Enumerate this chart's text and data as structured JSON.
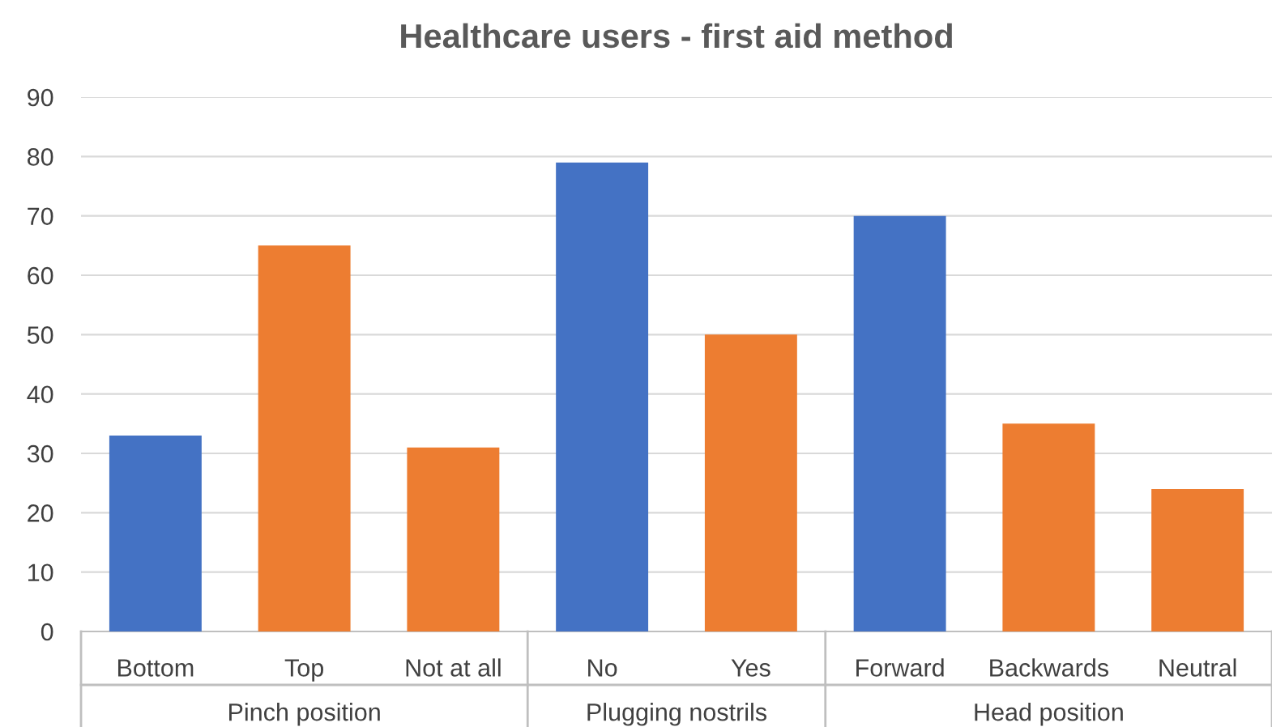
{
  "chart_data": {
    "type": "bar",
    "title": "Healthcare users - first aid method",
    "categories": [
      "Bottom",
      "Top",
      "Not at all",
      "No",
      "Yes",
      "Forward",
      "Backwards",
      "Neutral"
    ],
    "values": [
      33,
      65,
      31,
      79,
      50,
      70,
      35,
      24
    ],
    "colors": [
      "#4472c4",
      "#ed7d31",
      "#ed7d31",
      "#4472c4",
      "#ed7d31",
      "#4472c4",
      "#ed7d31",
      "#ed7d31"
    ],
    "annotations": [
      "Pinch position",
      "Plugging nostrils",
      "Head position"
    ],
    "ylim": [
      0,
      90
    ],
    "yticks": [
      0,
      10,
      20,
      30,
      40,
      50,
      60,
      70,
      80,
      90
    ],
    "grid": "y",
    "legend": false
  }
}
